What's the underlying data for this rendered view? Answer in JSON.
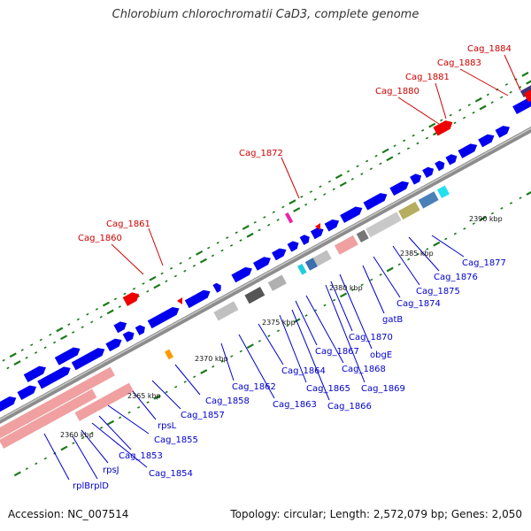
{
  "title": "Chlorobium chlorochromatii CaD3, complete genome",
  "footer": {
    "accession": "Accession: NC_007514",
    "stats": "Topology: circular; Length: 2,572,079 bp; Genes: 2,050"
  },
  "colors": {
    "backbone": "#8c8c8c",
    "forward_cds": "#0000ee",
    "reverse_cds": "#ee0000",
    "rrna": "#f0a0a0",
    "tick": "#1a7a1a",
    "blue_label": "#0000cc",
    "red_label": "#cc0000"
  },
  "scale_labels": [
    "2360 kbp",
    "2365 kbp",
    "2370 kbp",
    "2375 kbp",
    "2380 kbp",
    "2385 kbp",
    "2390 kbp"
  ],
  "red_labels": [
    "Cag_1860",
    "Cag_1861",
    "Cag_1872",
    "Cag_1880",
    "Cag_1881",
    "Cag_1883",
    "Cag_1884"
  ],
  "blue_labels": [
    "rplB",
    "rplD",
    "rpsJ",
    "Cag_1854",
    "Cag_1853",
    "Cag_1855",
    "rpsL",
    "Cag_1857",
    "Cag_1858",
    "Cag_1862",
    "Cag_1863",
    "Cag_1864",
    "Cag_1865",
    "Cag_1866",
    "Cag_1867",
    "Cag_1868",
    "Cag_1869",
    "Cag_1870",
    "obgE",
    "gatB",
    "Cag_1874",
    "Cag_1875",
    "Cag_1876",
    "Cag_1877"
  ]
}
